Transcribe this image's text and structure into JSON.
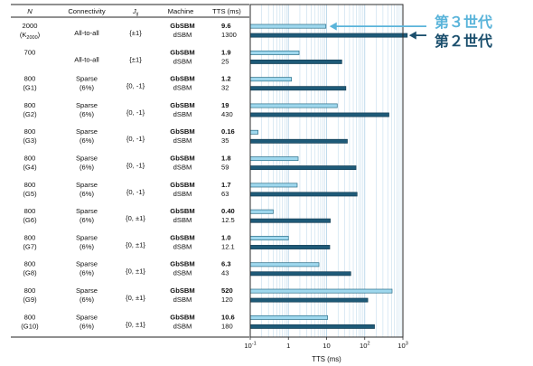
{
  "table": {
    "headers": [
      "N",
      "Connectivity",
      "J",
      "ij",
      "Machine",
      "TTS (ms)"
    ],
    "rows": [
      {
        "n": "2000",
        "n_sub_prefix": "(K",
        "n_sub": "2000",
        "n_sub_suffix": ")",
        "connectivity": [
          "All-to-all"
        ],
        "jij": "{±1}",
        "machine_new": "GbSBM",
        "machine_old": "dSBM",
        "tts_new": "9.6",
        "tts_old": "1300"
      },
      {
        "n": "700",
        "n_sub_prefix": "",
        "n_sub": "",
        "n_sub_suffix": "",
        "connectivity": [
          "All-to-all"
        ],
        "jij": "{±1}",
        "machine_new": "GbSBM",
        "machine_old": "dSBM",
        "tts_new": "1.9",
        "tts_old": "25"
      },
      {
        "n": "800",
        "n_sub_prefix": "(G1)",
        "n_sub": "",
        "n_sub_suffix": "",
        "connectivity": [
          "Sparse",
          "(6%)"
        ],
        "jij": "{0, -1}",
        "machine_new": "GbSBM",
        "machine_old": "dSBM",
        "tts_new": "1.2",
        "tts_old": "32"
      },
      {
        "n": "800",
        "n_sub_prefix": "(G2)",
        "n_sub": "",
        "n_sub_suffix": "",
        "connectivity": [
          "Sparse",
          "(6%)"
        ],
        "jij": "{0, -1}",
        "machine_new": "GbSBM",
        "machine_old": "dSBM",
        "tts_new": "19",
        "tts_old": "430"
      },
      {
        "n": "800",
        "n_sub_prefix": "(G3)",
        "n_sub": "",
        "n_sub_suffix": "",
        "connectivity": [
          "Sparse",
          "(6%)"
        ],
        "jij": "{0, -1}",
        "machine_new": "GbSBM",
        "machine_old": "dSBM",
        "tts_new": "0.16",
        "tts_old": "35"
      },
      {
        "n": "800",
        "n_sub_prefix": "(G4)",
        "n_sub": "",
        "n_sub_suffix": "",
        "connectivity": [
          "Sparse",
          "(6%)"
        ],
        "jij": "{0, -1}",
        "machine_new": "GbSBM",
        "machine_old": "dSBM",
        "tts_new": "1.8",
        "tts_old": "59"
      },
      {
        "n": "800",
        "n_sub_prefix": "(G5)",
        "n_sub": "",
        "n_sub_suffix": "",
        "connectivity": [
          "Sparse",
          "(6%)"
        ],
        "jij": "{0, -1}",
        "machine_new": "GbSBM",
        "machine_old": "dSBM",
        "tts_new": "1.7",
        "tts_old": "63"
      },
      {
        "n": "800",
        "n_sub_prefix": "(G6)",
        "n_sub": "",
        "n_sub_suffix": "",
        "connectivity": [
          "Sparse",
          "(6%)"
        ],
        "jij": "{0, ±1}",
        "machine_new": "GbSBM",
        "machine_old": "dSBM",
        "tts_new": "0.40",
        "tts_old": "12.5"
      },
      {
        "n": "800",
        "n_sub_prefix": "(G7)",
        "n_sub": "",
        "n_sub_suffix": "",
        "connectivity": [
          "Sparse",
          "(6%)"
        ],
        "jij": "{0, ±1}",
        "machine_new": "GbSBM",
        "machine_old": "dSBM",
        "tts_new": "1.0",
        "tts_old": "12.1"
      },
      {
        "n": "800",
        "n_sub_prefix": "(G8)",
        "n_sub": "",
        "n_sub_suffix": "",
        "connectivity": [
          "Sparse",
          "(6%)"
        ],
        "jij": "{0, ±1}",
        "machine_new": "GbSBM",
        "machine_old": "dSBM",
        "tts_new": "6.3",
        "tts_old": "43"
      },
      {
        "n": "800",
        "n_sub_prefix": "(G9)",
        "n_sub": "",
        "n_sub_suffix": "",
        "connectivity": [
          "Sparse",
          "(6%)"
        ],
        "jij": "{0, ±1}",
        "machine_new": "GbSBM",
        "machine_old": "dSBM",
        "tts_new": "520",
        "tts_old": "120"
      },
      {
        "n": "800",
        "n_sub_prefix": "(G10)",
        "n_sub": "",
        "n_sub_suffix": "",
        "connectivity": [
          "Sparse",
          "(6%)"
        ],
        "jij": "{0, ±1}",
        "machine_new": "GbSBM",
        "machine_old": "dSBM",
        "tts_new": "10.6",
        "tts_old": "180"
      }
    ]
  },
  "chart_data": {
    "type": "bar",
    "orientation": "horizontal",
    "x_scale": "log",
    "xlim": [
      0.1,
      1000
    ],
    "xlabel": "TTS (ms)",
    "x_ticks": [
      {
        "base": "10",
        "exp": "-1"
      },
      {
        "base": "1",
        "exp": ""
      },
      {
        "base": "10",
        "exp": ""
      },
      {
        "base": "10",
        "exp": "2"
      },
      {
        "base": "10",
        "exp": "3"
      }
    ],
    "x_tick_values": [
      0.1,
      1,
      10,
      100,
      1000
    ],
    "grid": true,
    "categories": [
      "K2000",
      "700",
      "G1",
      "G2",
      "G3",
      "G4",
      "G5",
      "G6",
      "G7",
      "G8",
      "G9",
      "G10"
    ],
    "series": [
      {
        "name": "GbSBM",
        "values": [
          9.6,
          1.9,
          1.2,
          19,
          0.16,
          1.8,
          1.7,
          0.4,
          1.0,
          6.3,
          520,
          10.6
        ]
      },
      {
        "name": "dSBM",
        "values": [
          1300,
          25,
          32,
          430,
          35,
          59,
          63,
          12.5,
          12.1,
          43,
          120,
          180
        ]
      }
    ],
    "annotations": [
      {
        "text": "第３世代",
        "target_series": "GbSBM",
        "target_index": 0
      },
      {
        "text": "第２世代",
        "target_series": "dSBM",
        "target_index": 0
      }
    ]
  },
  "colors": {
    "new_bar_fill": "#9fd8ee",
    "new_bar_stroke": "#2a6e88",
    "old_bar_fill": "#1e5a78",
    "old_bar_stroke": "#163f55",
    "gen3_text": "#5ab4da",
    "gen2_text": "#1b4f6d",
    "grid": "#b8d6ea",
    "frame": "#2b2b2b"
  }
}
